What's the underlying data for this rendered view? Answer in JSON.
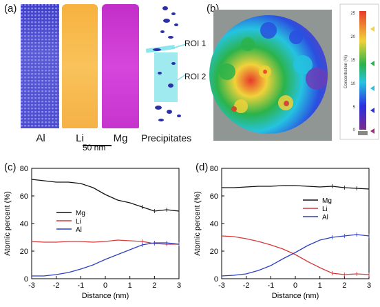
{
  "panels": {
    "a": {
      "label": "(a)",
      "elements": [
        "Al",
        "Li",
        "Mg",
        "Precipitates"
      ],
      "scale_bar": "50 nm",
      "roi_labels": [
        "ROI 1",
        "ROI 2"
      ],
      "colors": {
        "Al": "#3e3ec9",
        "Li": "#f7b23f",
        "Mg": "#c634cd",
        "roi": "#7fe3ea",
        "precipitate": "#2b2fa8"
      }
    },
    "b": {
      "label": "(b)",
      "colorbar_title": "Concentration (%)",
      "colorbar_ticks": [
        "0",
        "5",
        "10",
        "15",
        "20",
        "25"
      ]
    },
    "c": {
      "label": "(c)"
    },
    "d": {
      "label": "(d)"
    }
  },
  "chart_data": [
    {
      "type": "line",
      "panel": "c",
      "xlabel": "Distance (nm)",
      "ylabel": "Atomic percent (%)",
      "xlim": [
        -3,
        3
      ],
      "ylim": [
        0,
        80
      ],
      "xticks": [
        -3,
        -2,
        -1,
        0,
        1,
        2,
        3
      ],
      "yticks": [
        0,
        20,
        40,
        60,
        80
      ],
      "legend_position": "center-left",
      "series": [
        {
          "name": "Mg",
          "color": "#111111",
          "x": [
            -3,
            -2.5,
            -2,
            -1.5,
            -1,
            -0.5,
            0,
            0.5,
            1,
            1.5,
            2,
            2.5,
            3
          ],
          "y": [
            72,
            71,
            70,
            70,
            69,
            66,
            61,
            57,
            55,
            52,
            49,
            50,
            49
          ]
        },
        {
          "name": "Li",
          "color": "#d43a3a",
          "x": [
            -3,
            -2.5,
            -2,
            -1.5,
            -1,
            -0.5,
            0,
            0.5,
            1,
            1.5,
            2,
            2.5,
            3
          ],
          "y": [
            27,
            26.5,
            26.5,
            27,
            27,
            26.5,
            27,
            28,
            27.5,
            27,
            25.5,
            25,
            25
          ]
        },
        {
          "name": "Al",
          "color": "#2b3fc4",
          "x": [
            -3,
            -2.5,
            -2,
            -1.5,
            -1,
            -0.5,
            0,
            0.5,
            1,
            1.5,
            2,
            2.5,
            3
          ],
          "y": [
            2,
            2,
            3,
            4.5,
            7,
            10,
            14,
            17.5,
            21,
            24.5,
            26,
            26,
            25
          ]
        }
      ]
    },
    {
      "type": "line",
      "panel": "d",
      "xlabel": "Distance (nm)",
      "ylabel": "Atomic percent (%)",
      "xlim": [
        -3,
        3
      ],
      "ylim": [
        0,
        80
      ],
      "xticks": [
        -3,
        -2,
        -1,
        0,
        1,
        2,
        3
      ],
      "yticks": [
        0,
        20,
        40,
        60,
        80
      ],
      "legend_position": "center-right",
      "series": [
        {
          "name": "Mg",
          "color": "#111111",
          "x": [
            -3,
            -2.5,
            -2,
            -1.5,
            -1,
            -0.5,
            0,
            0.5,
            1,
            1.5,
            2,
            2.5,
            3
          ],
          "y": [
            66,
            66,
            66.5,
            67,
            67,
            67.5,
            67.5,
            67,
            66.5,
            67,
            66,
            65.5,
            65
          ]
        },
        {
          "name": "Li",
          "color": "#d43a3a",
          "x": [
            -3,
            -2.5,
            -2,
            -1.5,
            -1,
            -0.5,
            0,
            0.5,
            1,
            1.5,
            2,
            2.5,
            3
          ],
          "y": [
            31,
            30.5,
            29,
            27,
            24.5,
            21.5,
            17.5,
            12.5,
            8,
            4,
            3,
            3.5,
            3
          ]
        },
        {
          "name": "Al",
          "color": "#2b3fc4",
          "x": [
            -3,
            -2.5,
            -2,
            -1.5,
            -1,
            -0.5,
            0,
            0.5,
            1,
            1.5,
            2,
            2.5,
            3
          ],
          "y": [
            2,
            2.5,
            3.5,
            6,
            9.5,
            14.5,
            19,
            24,
            28,
            30,
            31,
            32,
            31
          ]
        }
      ]
    }
  ]
}
